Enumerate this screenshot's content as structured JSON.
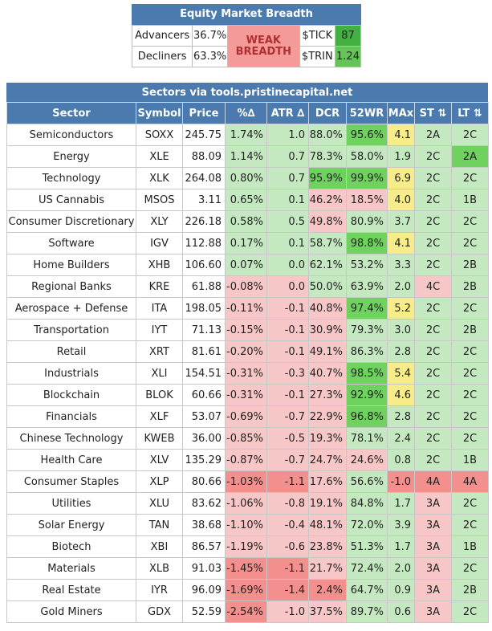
{
  "breadth": {
    "title": "Equity Market Breadth",
    "advancers_label": "Advancers",
    "advancers_value": "36.7%",
    "decliners_label": "Decliners",
    "decliners_value": "63.3%",
    "status_line1": "WEAK",
    "status_line2": "BREADTH",
    "tick_label": "$TICK",
    "tick_value": "87",
    "trin_label": "$TRIN",
    "trin_value": "1.24"
  },
  "sectors": {
    "title": "Sectors via tools.pristinecapital.net",
    "headers": [
      "Sector",
      "Symbol",
      "Price",
      "%∆",
      "ATR ∆",
      "DCR",
      "52WR",
      "MAx",
      "ST ⇅",
      "LT ⇅"
    ],
    "rows": [
      [
        "Semiconductors",
        "SOXX",
        "245.75",
        "1.74%",
        "1.0",
        "88.0%",
        "95.6%",
        "4.1",
        "2A",
        "2C"
      ],
      [
        "Energy",
        "XLE",
        "88.09",
        "1.14%",
        "0.7",
        "78.3%",
        "58.0%",
        "1.9",
        "2C",
        "2A"
      ],
      [
        "Technology",
        "XLK",
        "264.08",
        "0.80%",
        "0.7",
        "95.9%",
        "99.9%",
        "6.9",
        "2C",
        "2C"
      ],
      [
        "US Cannabis",
        "MSOS",
        "3.11",
        "0.65%",
        "0.1",
        "46.2%",
        "18.5%",
        "4.0",
        "2C",
        "1B"
      ],
      [
        "Consumer Discretionary",
        "XLY",
        "226.18",
        "0.58%",
        "0.5",
        "49.8%",
        "80.9%",
        "3.7",
        "2C",
        "2C"
      ],
      [
        "Software",
        "IGV",
        "112.88",
        "0.17%",
        "0.1",
        "58.7%",
        "98.8%",
        "4.1",
        "2C",
        "2C"
      ],
      [
        "Home Builders",
        "XHB",
        "106.60",
        "0.07%",
        "0.0",
        "62.1%",
        "53.2%",
        "3.3",
        "2C",
        "2B"
      ],
      [
        "Regional Banks",
        "KRE",
        "61.88",
        "-0.08%",
        "0.0",
        "50.0%",
        "63.9%",
        "2.0",
        "4C",
        "2B"
      ],
      [
        "Aerospace + Defense",
        "ITA",
        "198.05",
        "-0.11%",
        "-0.1",
        "40.8%",
        "97.4%",
        "5.2",
        "2C",
        "2C"
      ],
      [
        "Transportation",
        "IYT",
        "71.13",
        "-0.15%",
        "-0.1",
        "30.9%",
        "79.3%",
        "3.0",
        "2C",
        "2B"
      ],
      [
        "Retail",
        "XRT",
        "81.61",
        "-0.20%",
        "-0.1",
        "49.1%",
        "86.3%",
        "2.8",
        "2C",
        "2C"
      ],
      [
        "Industrials",
        "XLI",
        "154.51",
        "-0.31%",
        "-0.3",
        "40.7%",
        "98.5%",
        "5.4",
        "2C",
        "2C"
      ],
      [
        "Blockchain",
        "BLOK",
        "60.66",
        "-0.31%",
        "-0.1",
        "27.3%",
        "92.9%",
        "4.6",
        "2C",
        "2C"
      ],
      [
        "Financials",
        "XLF",
        "53.07",
        "-0.69%",
        "-0.7",
        "22.9%",
        "96.8%",
        "2.8",
        "2C",
        "2C"
      ],
      [
        "Chinese Technology",
        "KWEB",
        "36.00",
        "-0.85%",
        "-0.5",
        "19.3%",
        "78.1%",
        "2.4",
        "2C",
        "2C"
      ],
      [
        "Health Care",
        "XLV",
        "135.29",
        "-0.87%",
        "-0.7",
        "24.7%",
        "24.6%",
        "0.8",
        "2C",
        "1B"
      ],
      [
        "Consumer Staples",
        "XLP",
        "80.66",
        "-1.03%",
        "-1.1",
        "17.6%",
        "56.6%",
        "-1.0",
        "4A",
        "4A"
      ],
      [
        "Utilities",
        "XLU",
        "83.62",
        "-1.06%",
        "-0.8",
        "19.1%",
        "84.8%",
        "1.7",
        "3A",
        "2C"
      ],
      [
        "Solar Energy",
        "TAN",
        "38.68",
        "-1.10%",
        "-0.4",
        "48.1%",
        "72.0%",
        "3.9",
        "3A",
        "2C"
      ],
      [
        "Biotech",
        "XBI",
        "86.57",
        "-1.19%",
        "-0.6",
        "23.8%",
        "51.3%",
        "1.7",
        "3A",
        "1B"
      ],
      [
        "Materials",
        "XLB",
        "91.03",
        "-1.45%",
        "-1.1",
        "21.7%",
        "72.4%",
        "2.0",
        "3A",
        "2C"
      ],
      [
        "Real Estate",
        "IYR",
        "96.09",
        "-1.69%",
        "-1.4",
        "2.4%",
        "64.7%",
        "0.9",
        "3A",
        "2B"
      ],
      [
        "Gold Miners",
        "GDX",
        "52.59",
        "-2.54%",
        "-1.0",
        "37.5%",
        "89.7%",
        "0.6",
        "3A",
        "2C"
      ]
    ],
    "cell_colors": [
      [
        "w",
        "w",
        "w",
        "lime",
        "lime",
        "lime",
        "green",
        "yellow",
        "lime",
        "lime"
      ],
      [
        "w",
        "w",
        "w",
        "lime",
        "lime",
        "lime",
        "lime",
        "lime",
        "lime",
        "green"
      ],
      [
        "w",
        "w",
        "w",
        "lime",
        "lime",
        "green",
        "green",
        "yellow",
        "lime",
        "lime"
      ],
      [
        "w",
        "w",
        "w",
        "lime",
        "lime",
        "pink",
        "pink",
        "yellow",
        "lime",
        "lime"
      ],
      [
        "w",
        "w",
        "w",
        "lime",
        "lime",
        "pink",
        "lime",
        "lime",
        "lime",
        "lime"
      ],
      [
        "w",
        "w",
        "w",
        "lime",
        "lime",
        "lime",
        "green",
        "yellow",
        "lime",
        "lime"
      ],
      [
        "w",
        "w",
        "w",
        "lime",
        "lime",
        "lime",
        "lime",
        "lime",
        "lime",
        "lime"
      ],
      [
        "w",
        "w",
        "w",
        "pink",
        "pink",
        "lime",
        "lime",
        "lime",
        "pink",
        "lime"
      ],
      [
        "w",
        "w",
        "w",
        "pink",
        "pink",
        "pink",
        "green",
        "yellow",
        "lime",
        "lime"
      ],
      [
        "w",
        "w",
        "w",
        "pink",
        "pink",
        "pink",
        "lime",
        "lime",
        "lime",
        "lime"
      ],
      [
        "w",
        "w",
        "w",
        "pink",
        "pink",
        "pink",
        "lime",
        "lime",
        "lime",
        "lime"
      ],
      [
        "w",
        "w",
        "w",
        "pink",
        "pink",
        "pink",
        "green",
        "yellow",
        "lime",
        "lime"
      ],
      [
        "w",
        "w",
        "w",
        "pink",
        "pink",
        "pink",
        "green",
        "yellow",
        "lime",
        "lime"
      ],
      [
        "w",
        "w",
        "w",
        "pink",
        "pink",
        "pink",
        "green",
        "lime",
        "lime",
        "lime"
      ],
      [
        "w",
        "w",
        "w",
        "pink",
        "pink",
        "pink",
        "lime",
        "lime",
        "lime",
        "lime"
      ],
      [
        "w",
        "w",
        "w",
        "pink",
        "pink",
        "pink",
        "pink",
        "lime",
        "lime",
        "lime"
      ],
      [
        "w",
        "w",
        "w",
        "red",
        "red",
        "pink",
        "lime",
        "red",
        "red",
        "red"
      ],
      [
        "w",
        "w",
        "w",
        "pink",
        "pink",
        "pink",
        "lime",
        "lime",
        "pink",
        "lime"
      ],
      [
        "w",
        "w",
        "w",
        "pink",
        "pink",
        "pink",
        "lime",
        "lime",
        "pink",
        "lime"
      ],
      [
        "w",
        "w",
        "w",
        "pink",
        "pink",
        "pink",
        "lime",
        "lime",
        "pink",
        "lime"
      ],
      [
        "w",
        "w",
        "w",
        "red",
        "red",
        "pink",
        "lime",
        "lime",
        "pink",
        "lime"
      ],
      [
        "w",
        "w",
        "w",
        "red",
        "red",
        "red",
        "lime",
        "lime",
        "pink",
        "lime"
      ],
      [
        "w",
        "w",
        "w",
        "red",
        "pink",
        "pink",
        "lime",
        "lime",
        "pink",
        "lime"
      ]
    ]
  }
}
